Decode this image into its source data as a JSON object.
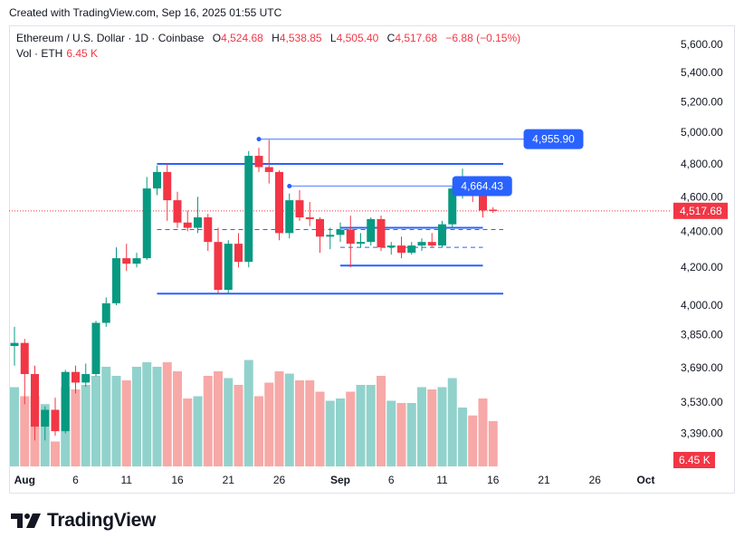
{
  "caption": "Created with TradingView.com, Sep 16, 2025 01:55 UTC",
  "legend": {
    "symbol": "Ethereum / U.S. Dollar · 1D · Coinbase",
    "o_label": "O",
    "o_value": "4,524.68",
    "h_label": "H",
    "h_value": "4,538.85",
    "l_label": "L",
    "l_value": "4,505.40",
    "c_label": "C",
    "c_value": "4,517.68",
    "change": "−6.88 (−0.15%)",
    "vol_label": "Vol · ETH",
    "vol_value": "6.45 K"
  },
  "brand": {
    "name": "TradingView",
    "logo_icon": "tradingview-logo-icon"
  },
  "colors": {
    "up": "#089981",
    "down": "#f23645",
    "up_vol": "#92d2cc",
    "down_vol": "#f7a9a7",
    "drawing": "#2962ff",
    "label_bg": "#2962ff"
  },
  "chart_data": {
    "type": "candlestick",
    "y_scale": "log",
    "y_ticks": [
      "5,600.00",
      "5,400.00",
      "5,200.00",
      "5,000.00",
      "4,800.00",
      "4,600.00",
      "4,400.00",
      "4,200.00",
      "4,000.00",
      "3,850.00",
      "3,690.00",
      "3,530.00",
      "3,390.00"
    ],
    "y_tick_values": [
      5600,
      5400,
      5200,
      5000,
      4800,
      4600,
      4400,
      4200,
      4000,
      3850,
      3690,
      3530,
      3390
    ],
    "x_ticks": [
      {
        "label": "Aug",
        "date": "2025-08-01"
      },
      {
        "label": "6",
        "date": "2025-08-06"
      },
      {
        "label": "11",
        "date": "2025-08-11"
      },
      {
        "label": "16",
        "date": "2025-08-16"
      },
      {
        "label": "21",
        "date": "2025-08-21"
      },
      {
        "label": "26",
        "date": "2025-08-26"
      },
      {
        "label": "Sep",
        "date": "2025-09-01"
      },
      {
        "label": "6",
        "date": "2025-09-06"
      },
      {
        "label": "11",
        "date": "2025-09-11"
      },
      {
        "label": "16",
        "date": "2025-09-16"
      },
      {
        "label": "21",
        "date": "2025-09-21"
      },
      {
        "label": "26",
        "date": "2025-09-26"
      },
      {
        "label": "Oct",
        "date": "2025-10-01"
      }
    ],
    "x_range": [
      "2025-07-31",
      "2025-10-01"
    ],
    "candles": [
      {
        "date": "2025-07-31",
        "o": 3795,
        "h": 3890,
        "l": 3700,
        "c": 3810
      },
      {
        "date": "2025-08-01",
        "o": 3810,
        "h": 3830,
        "l": 3520,
        "c": 3660
      },
      {
        "date": "2025-08-02",
        "o": 3660,
        "h": 3700,
        "l": 3360,
        "c": 3420
      },
      {
        "date": "2025-08-03",
        "o": 3420,
        "h": 3510,
        "l": 3360,
        "c": 3495
      },
      {
        "date": "2025-08-04",
        "o": 3495,
        "h": 3550,
        "l": 3380,
        "c": 3400
      },
      {
        "date": "2025-08-05",
        "o": 3400,
        "h": 3680,
        "l": 3390,
        "c": 3670
      },
      {
        "date": "2025-08-06",
        "o": 3670,
        "h": 3700,
        "l": 3570,
        "c": 3620
      },
      {
        "date": "2025-08-07",
        "o": 3620,
        "h": 3710,
        "l": 3600,
        "c": 3660
      },
      {
        "date": "2025-08-08",
        "o": 3660,
        "h": 3920,
        "l": 3650,
        "c": 3910
      },
      {
        "date": "2025-08-09",
        "o": 3910,
        "h": 4040,
        "l": 3890,
        "c": 4010
      },
      {
        "date": "2025-08-10",
        "o": 4010,
        "h": 4310,
        "l": 4000,
        "c": 4250
      },
      {
        "date": "2025-08-11",
        "o": 4250,
        "h": 4330,
        "l": 4180,
        "c": 4220
      },
      {
        "date": "2025-08-12",
        "o": 4220,
        "h": 4280,
        "l": 4200,
        "c": 4250
      },
      {
        "date": "2025-08-13",
        "o": 4250,
        "h": 4720,
        "l": 4240,
        "c": 4650
      },
      {
        "date": "2025-08-14",
        "o": 4650,
        "h": 4790,
        "l": 4610,
        "c": 4750
      },
      {
        "date": "2025-08-15",
        "o": 4750,
        "h": 4800,
        "l": 4460,
        "c": 4580
      },
      {
        "date": "2025-08-16",
        "o": 4580,
        "h": 4630,
        "l": 4420,
        "c": 4450
      },
      {
        "date": "2025-08-17",
        "o": 4450,
        "h": 4520,
        "l": 4400,
        "c": 4420
      },
      {
        "date": "2025-08-18",
        "o": 4420,
        "h": 4600,
        "l": 4390,
        "c": 4480
      },
      {
        "date": "2025-08-19",
        "o": 4480,
        "h": 4500,
        "l": 4290,
        "c": 4340
      },
      {
        "date": "2025-08-20",
        "o": 4340,
        "h": 4420,
        "l": 4060,
        "c": 4080
      },
      {
        "date": "2025-08-21",
        "o": 4080,
        "h": 4350,
        "l": 4060,
        "c": 4330
      },
      {
        "date": "2025-08-22",
        "o": 4330,
        "h": 4390,
        "l": 4200,
        "c": 4230
      },
      {
        "date": "2025-08-23",
        "o": 4230,
        "h": 4880,
        "l": 4200,
        "c": 4850
      },
      {
        "date": "2025-08-24",
        "o": 4850,
        "h": 4900,
        "l": 4750,
        "c": 4780
      },
      {
        "date": "2025-08-25",
        "o": 4780,
        "h": 4950,
        "l": 4680,
        "c": 4750
      },
      {
        "date": "2025-08-26",
        "o": 4750,
        "h": 4760,
        "l": 4350,
        "c": 4390
      },
      {
        "date": "2025-08-27",
        "o": 4390,
        "h": 4620,
        "l": 4360,
        "c": 4580
      },
      {
        "date": "2025-08-28",
        "o": 4580,
        "h": 4640,
        "l": 4460,
        "c": 4480
      },
      {
        "date": "2025-08-29",
        "o": 4480,
        "h": 4570,
        "l": 4430,
        "c": 4470
      },
      {
        "date": "2025-08-30",
        "o": 4470,
        "h": 4480,
        "l": 4280,
        "c": 4370
      },
      {
        "date": "2025-08-31",
        "o": 4370,
        "h": 4420,
        "l": 4300,
        "c": 4380
      },
      {
        "date": "2025-09-01",
        "o": 4380,
        "h": 4450,
        "l": 4340,
        "c": 4410
      },
      {
        "date": "2025-09-02",
        "o": 4410,
        "h": 4490,
        "l": 4200,
        "c": 4330
      },
      {
        "date": "2025-09-03",
        "o": 4330,
        "h": 4390,
        "l": 4310,
        "c": 4340
      },
      {
        "date": "2025-09-04",
        "o": 4340,
        "h": 4480,
        "l": 4320,
        "c": 4470
      },
      {
        "date": "2025-09-05",
        "o": 4470,
        "h": 4490,
        "l": 4290,
        "c": 4310
      },
      {
        "date": "2025-09-06",
        "o": 4310,
        "h": 4340,
        "l": 4270,
        "c": 4320
      },
      {
        "date": "2025-09-07",
        "o": 4320,
        "h": 4370,
        "l": 4250,
        "c": 4280
      },
      {
        "date": "2025-09-08",
        "o": 4280,
        "h": 4340,
        "l": 4270,
        "c": 4320
      },
      {
        "date": "2025-09-09",
        "o": 4320,
        "h": 4360,
        "l": 4290,
        "c": 4340
      },
      {
        "date": "2025-09-10",
        "o": 4340,
        "h": 4390,
        "l": 4310,
        "c": 4320
      },
      {
        "date": "2025-09-11",
        "o": 4320,
        "h": 4460,
        "l": 4310,
        "c": 4440
      },
      {
        "date": "2025-09-12",
        "o": 4440,
        "h": 4660,
        "l": 4420,
        "c": 4650
      },
      {
        "date": "2025-09-13",
        "o": 4650,
        "h": 4770,
        "l": 4590,
        "c": 4700
      },
      {
        "date": "2025-09-14",
        "o": 4700,
        "h": 4720,
        "l": 4570,
        "c": 4610
      },
      {
        "date": "2025-09-15",
        "o": 4610,
        "h": 4680,
        "l": 4480,
        "c": 4520
      },
      {
        "date": "2025-09-16",
        "o": 4524.68,
        "h": 4538.85,
        "l": 4505.4,
        "c": 4517.68
      }
    ],
    "volume": [
      {
        "date": "2025-07-31",
        "v": 0.7
      },
      {
        "date": "2025-08-01",
        "v": 0.62
      },
      {
        "date": "2025-08-02",
        "v": 0.62
      },
      {
        "date": "2025-08-03",
        "v": 0.55
      },
      {
        "date": "2025-08-04",
        "v": 0.22
      },
      {
        "date": "2025-08-05",
        "v": 0.7
      },
      {
        "date": "2025-08-06",
        "v": 0.68
      },
      {
        "date": "2025-08-07",
        "v": 0.72
      },
      {
        "date": "2025-08-08",
        "v": 0.8
      },
      {
        "date": "2025-08-09",
        "v": 0.88
      },
      {
        "date": "2025-08-10",
        "v": 0.8
      },
      {
        "date": "2025-08-11",
        "v": 0.76
      },
      {
        "date": "2025-08-12",
        "v": 0.88
      },
      {
        "date": "2025-08-13",
        "v": 0.92
      },
      {
        "date": "2025-08-14",
        "v": 0.88
      },
      {
        "date": "2025-08-15",
        "v": 0.92
      },
      {
        "date": "2025-08-16",
        "v": 0.84
      },
      {
        "date": "2025-08-17",
        "v": 0.6
      },
      {
        "date": "2025-08-18",
        "v": 0.62
      },
      {
        "date": "2025-08-19",
        "v": 0.8
      },
      {
        "date": "2025-08-20",
        "v": 0.84
      },
      {
        "date": "2025-08-21",
        "v": 0.78
      },
      {
        "date": "2025-08-22",
        "v": 0.72
      },
      {
        "date": "2025-08-23",
        "v": 0.94
      },
      {
        "date": "2025-08-24",
        "v": 0.62
      },
      {
        "date": "2025-08-25",
        "v": 0.74
      },
      {
        "date": "2025-08-26",
        "v": 0.84
      },
      {
        "date": "2025-08-27",
        "v": 0.82
      },
      {
        "date": "2025-08-28",
        "v": 0.76
      },
      {
        "date": "2025-08-29",
        "v": 0.76
      },
      {
        "date": "2025-08-30",
        "v": 0.66
      },
      {
        "date": "2025-08-31",
        "v": 0.58
      },
      {
        "date": "2025-09-01",
        "v": 0.6
      },
      {
        "date": "2025-09-02",
        "v": 0.66
      },
      {
        "date": "2025-09-03",
        "v": 0.72
      },
      {
        "date": "2025-09-04",
        "v": 0.72
      },
      {
        "date": "2025-09-05",
        "v": 0.8
      },
      {
        "date": "2025-09-06",
        "v": 0.58
      },
      {
        "date": "2025-09-07",
        "v": 0.56
      },
      {
        "date": "2025-09-08",
        "v": 0.56
      },
      {
        "date": "2025-09-09",
        "v": 0.7
      },
      {
        "date": "2025-09-10",
        "v": 0.68
      },
      {
        "date": "2025-09-11",
        "v": 0.7
      },
      {
        "date": "2025-09-12",
        "v": 0.78
      },
      {
        "date": "2025-09-13",
        "v": 0.52
      },
      {
        "date": "2025-09-14",
        "v": 0.45
      },
      {
        "date": "2025-09-15",
        "v": 0.6
      },
      {
        "date": "2025-09-16",
        "v": 0.4
      }
    ],
    "drawings": {
      "range_boxes": [
        {
          "start": "2025-08-14",
          "end": "2025-09-17",
          "top": 4800,
          "bottom": 4060,
          "mid": 4410
        },
        {
          "start": "2025-09-01",
          "end": "2025-09-15",
          "top": 4420,
          "bottom": 4210,
          "mid": 4310
        }
      ],
      "horizontal_rays": [
        {
          "start": "2025-08-24",
          "end": "2025-09-19",
          "price": 4955.9,
          "label": "4,955.90"
        },
        {
          "start": "2025-08-27",
          "end": "2025-09-12",
          "price": 4664.43,
          "label": "4,664.43"
        }
      ],
      "last_price": {
        "value": 4517.68,
        "label": "4,517.68"
      },
      "volume_label": "6.45 K"
    }
  }
}
